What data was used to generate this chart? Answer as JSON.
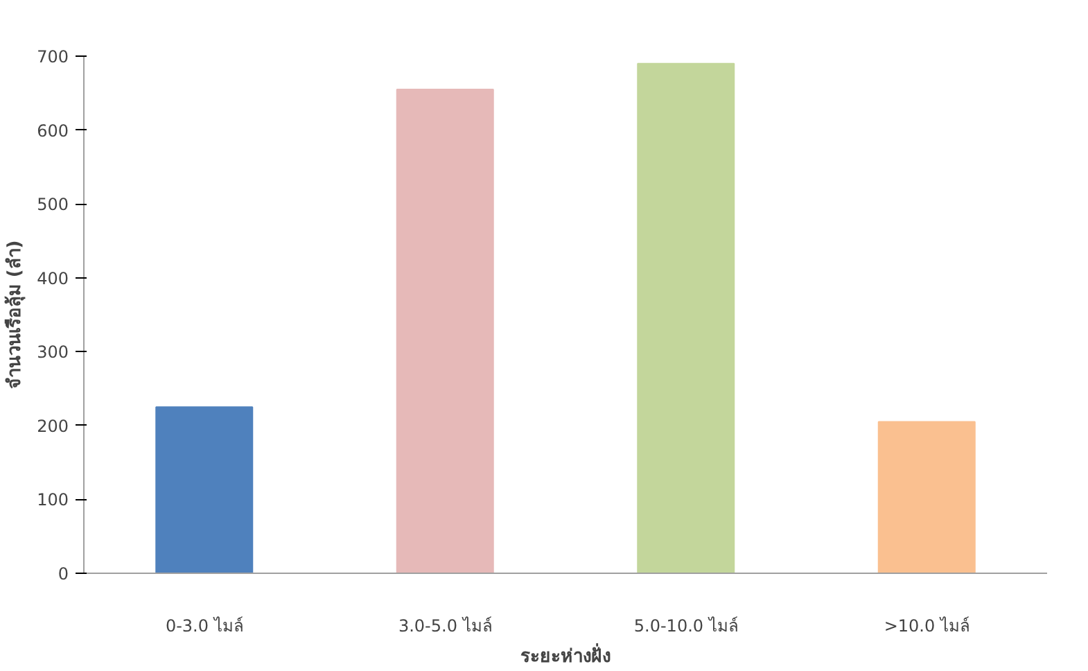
{
  "chart_data": {
    "type": "bar",
    "xlabel": "ระยะห่างฝั่ง",
    "ylabel": "จำนวนเรือลุ้ม (ลำ)",
    "categories": [
      "0-3.0 ไมล์",
      "3.0-5.0 ไมล์",
      "5.0-10.0 ไมล์",
      ">10.0 ไมล์"
    ],
    "values": [
      225,
      655,
      690,
      205
    ],
    "colors": [
      "#4f81bd",
      "#e6b9b8",
      "#c3d69b",
      "#fac090"
    ],
    "ylim": [
      0,
      700
    ],
    "yticks": [
      0,
      100,
      200,
      300,
      400,
      500,
      600,
      700
    ],
    "grid": false
  }
}
